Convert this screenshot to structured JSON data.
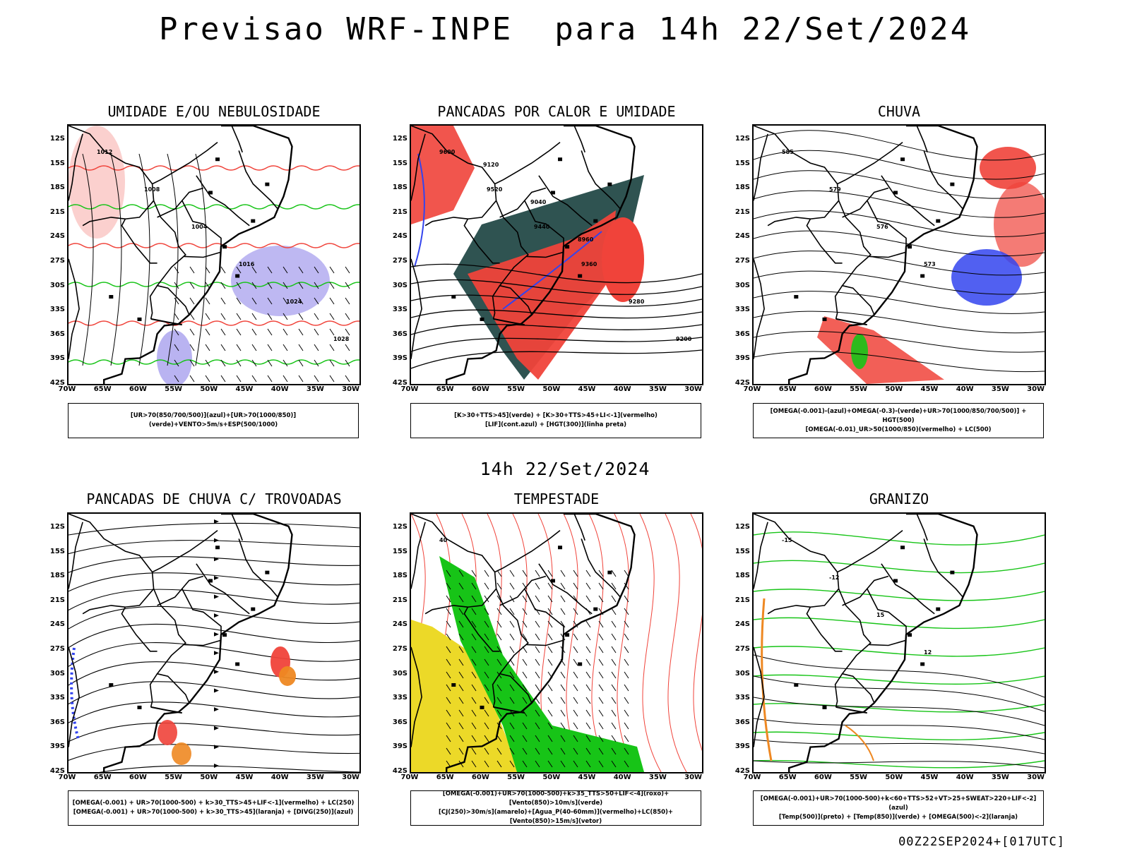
{
  "title": "Previsao WRF-INPE  para 14h 22/Set/2024",
  "subtitle": "14h 22/Set/2024",
  "footer": "00Z22SEP2024+[017UTC]",
  "lat_labels": [
    "12S",
    "15S",
    "18S",
    "21S",
    "24S",
    "27S",
    "30S",
    "33S",
    "36S",
    "39S",
    "42S"
  ],
  "lon_labels": [
    "70W",
    "65W",
    "60W",
    "55W",
    "50W",
    "45W",
    "40W",
    "35W",
    "30W"
  ],
  "colors": {
    "red": "#f0433a",
    "green": "#17c417",
    "blue": "#3344ee",
    "yellow": "#ecd928",
    "orange": "#ee8822",
    "teal": "#244a48",
    "lavender": "#a8a0ee"
  },
  "panels": [
    {
      "title": "UMIDADE E/OU NEBULOSIDADE",
      "legend": [
        "[UR>70(850/700/500)](azul)+[UR>70(1000/850)](verde)+VENTO>5m/s+ESP(500/1000)"
      ],
      "contour_labels": [
        "1012",
        "1008",
        "1004",
        "1016",
        "1024",
        "1028"
      ]
    },
    {
      "title": "PANCADAS POR CALOR E UMIDADE",
      "legend": [
        "[K>30+TTS>45](verde) + [K>30+TTS>45+LI<-1](vermelho)",
        "[LIF](cont.azul) + [HGT(300)](linha preta)"
      ],
      "contour_labels": [
        "9600",
        "9520",
        "9440",
        "9360",
        "9280",
        "9200",
        "9120",
        "9040",
        "8960"
      ]
    },
    {
      "title": "CHUVA",
      "legend": [
        "[OMEGA(-0.001)-(azul)+OMEGA(-0.3)-(verde)+UR>70(1000/850/700/500)] + HGT(500)",
        "[OMEGA(-0.01)_UR>50(1000/850)(vermelho) + LC(500)"
      ],
      "contour_labels": [
        "585",
        "579",
        "576",
        "573"
      ]
    },
    {
      "title": "PANCADAS DE CHUVA C/ TROVOADAS",
      "legend": [
        "[OMEGA(-0.001) + UR>70(1000-500) + k>30_TTS>45+LIF<-1](vermelho) + LC(250)",
        "[OMEGA(-0.001) + UR>70(1000-500) + k>30_TTS>45](laranja) + [DIVG(250)](azul)"
      ],
      "contour_labels": []
    },
    {
      "title": "TEMPESTADE",
      "legend": [
        "[OMEGA(-0.001)+UR>70(1000-500)+k>35_TTS>50+LIF<-4](roxo)+[Vento(850)>10m/s](verde)",
        "[CJ(250)>30m/s](amarelo)+[Agua_P(40-60mm)](vermelho)+LC(850)+[Vento(850)>15m/s](vetor)"
      ],
      "contour_labels": [
        "40"
      ]
    },
    {
      "title": "GRANIZO",
      "legend": [
        "[OMEGA(-0.001)+UR>70(1000-500)+k<60+TTS>52+VT>25+SWEAT>220+LIF<-2](azul)",
        "[Temp(500)](preto) + [Temp(850)](verde) + [OMEGA(500)<-2](laranja)"
      ],
      "contour_labels": [
        "-15",
        "-12",
        "15",
        "12"
      ]
    }
  ]
}
